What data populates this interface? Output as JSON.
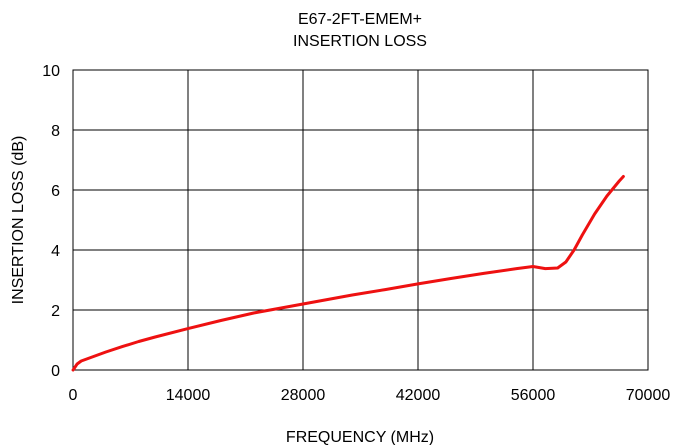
{
  "chart_data": {
    "type": "line",
    "title_line1": "E67-2FT-EMEM+",
    "title_line2": "INSERTION LOSS",
    "xlabel": "FREQUENCY (MHz)",
    "ylabel": "INSERTION LOSS (dB)",
    "xlim": [
      0,
      70000
    ],
    "ylim": [
      0,
      10
    ],
    "x_ticks": [
      0,
      14000,
      28000,
      42000,
      56000,
      70000
    ],
    "y_ticks": [
      0,
      2,
      4,
      6,
      8,
      10
    ],
    "grid": true,
    "series": [
      {
        "color": "#ee1111",
        "x": [
          10,
          500,
          1000,
          2000,
          4000,
          6000,
          8000,
          10000,
          14000,
          18000,
          22000,
          26000,
          30000,
          34000,
          38000,
          42000,
          46000,
          50000,
          54000,
          56000,
          57500,
          59000,
          60000,
          61000,
          62000,
          63500,
          65000,
          66500,
          67000
        ],
        "y": [
          0.0,
          0.2,
          0.3,
          0.4,
          0.6,
          0.78,
          0.95,
          1.1,
          1.38,
          1.65,
          1.9,
          2.1,
          2.3,
          2.5,
          2.68,
          2.87,
          3.05,
          3.22,
          3.38,
          3.45,
          3.38,
          3.4,
          3.6,
          4.0,
          4.5,
          5.2,
          5.8,
          6.3,
          6.45
        ]
      }
    ]
  }
}
